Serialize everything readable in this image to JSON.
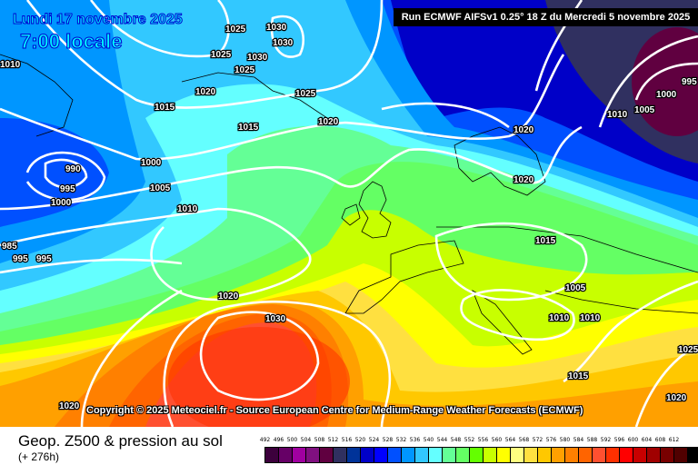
{
  "header": {
    "date": "Lundi 17 novembre 2025",
    "time": "7:00 locale",
    "run": "Run ECMWF AIFSv1 0.25° 18 Z du Mercredi 5 novembre 2025"
  },
  "copyright": "Copyright © 2025 Meteociel.fr - Source European Centre for Medium-Range Weather Forecasts (ECMWF)",
  "footer": {
    "product": "Geop. Z500 & pression au sol",
    "lead_time": "(+ 276h)"
  },
  "legend": {
    "labels": [
      "492",
      "496",
      "500",
      "504",
      "508",
      "512",
      "516",
      "520",
      "524",
      "528",
      "532",
      "536",
      "540",
      "544",
      "548",
      "552",
      "556",
      "560",
      "564",
      "568",
      "572",
      "576",
      "580",
      "584",
      "588",
      "592",
      "596",
      "600",
      "604",
      "608",
      "612"
    ],
    "colors": [
      "#3c003c",
      "#660066",
      "#a000a0",
      "#801080",
      "#600040",
      "#303060",
      "#003399",
      "#0000c8",
      "#0000ff",
      "#0050ff",
      "#0096ff",
      "#32c8ff",
      "#64ffff",
      "#64ff96",
      "#64ff64",
      "#64ff00",
      "#c8ff00",
      "#ffff00",
      "#ffff80",
      "#ffe040",
      "#ffc800",
      "#ffa000",
      "#ff8000",
      "#ff6400",
      "#ff5030",
      "#ff3000",
      "#ff0000",
      "#c80000",
      "#a00000",
      "#780000",
      "#500000",
      "#000000"
    ]
  },
  "isobar_labels": [
    "1025",
    "1030",
    "1030",
    "1030",
    "1025",
    "1025",
    "1020",
    "1015",
    "1015",
    "1025",
    "1020",
    "1020",
    "1000",
    "990",
    "995",
    "1000",
    "1005",
    "1010",
    "985",
    "995",
    "995",
    "1020",
    "1030",
    "1020",
    "1020",
    "1015",
    "1005",
    "1010",
    "1010",
    "1000",
    "1005",
    "1010",
    "995",
    "1015",
    "1025",
    "1020",
    "1010"
  ]
}
